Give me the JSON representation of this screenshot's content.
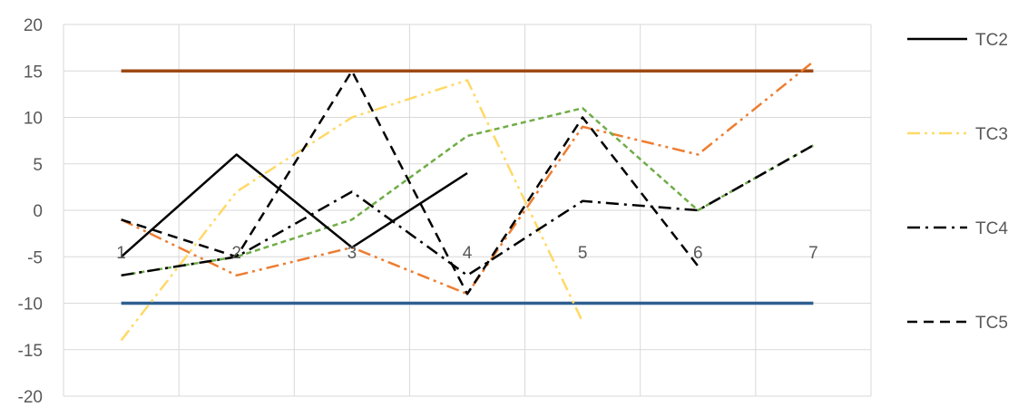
{
  "chart_data": {
    "type": "line",
    "title": "",
    "xlabel": "",
    "ylabel": "",
    "categories": [
      "1",
      "2",
      "3",
      "4",
      "5",
      "6",
      "7"
    ],
    "ylim": [
      -20,
      20
    ],
    "y_ticks": [
      20,
      15,
      10,
      5,
      0,
      -5,
      -10,
      -15,
      -20
    ],
    "grid": true,
    "legend_position": "right",
    "series": [
      {
        "name": "",
        "color": "#9C4A14",
        "style": "solid",
        "values": [
          15,
          15,
          15,
          15,
          15,
          15,
          15
        ]
      },
      {
        "name": "",
        "color": "#2F5F8F",
        "style": "solid",
        "values": [
          -10,
          -10,
          -10,
          -10,
          -10,
          -10,
          -10
        ]
      },
      {
        "name": "",
        "color": "#ED7D31",
        "style": "dash-dot-dot",
        "values": [
          -1,
          -7,
          -4,
          -9,
          9,
          6,
          16
        ]
      },
      {
        "name": "",
        "color": "#70AD47",
        "style": "short-dash",
        "values": [
          -7,
          -5,
          -1,
          8,
          11,
          0,
          7
        ]
      },
      {
        "name": "TC2",
        "color": "#000000",
        "style": "solid",
        "values": [
          -5,
          6,
          -4,
          4,
          null,
          null,
          null
        ]
      },
      {
        "name": "TC3",
        "color": "#FFD966",
        "style": "dash-dot-dot",
        "values": [
          -14,
          2,
          10,
          14,
          -12,
          null,
          null
        ]
      },
      {
        "name": "TC4",
        "color": "#000000",
        "style": "dash-dot",
        "values": [
          -7,
          -5,
          2,
          -7,
          1,
          0,
          7
        ]
      },
      {
        "name": "TC5",
        "color": "#000000",
        "style": "dash",
        "values": [
          -1,
          -5,
          15,
          -9,
          10,
          -6,
          null
        ]
      }
    ],
    "legend": [
      "TC2",
      "TC3",
      "TC4",
      "TC5"
    ]
  }
}
